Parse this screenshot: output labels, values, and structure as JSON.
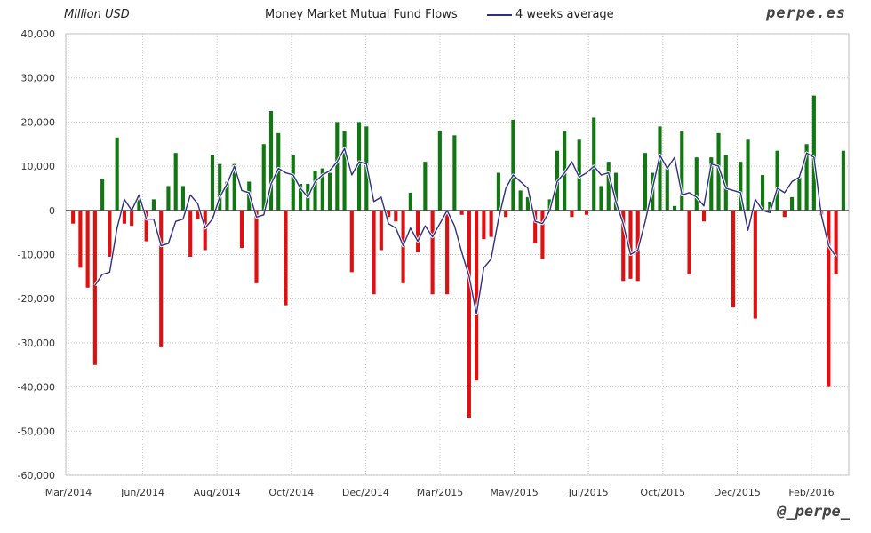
{
  "header": {
    "unit_label": "Million USD",
    "title": "Money Market Mutual Fund Flows",
    "legend_line_label": "4 weeks average",
    "brand": "perpe.es",
    "handle": "@_perpe_"
  },
  "chart_data": {
    "type": "bar",
    "title": "Money Market Mutual Fund Flows",
    "ylabel": "Million USD",
    "xlabel": "",
    "ylim": [
      -60000,
      40000
    ],
    "yticks": [
      "40,000",
      "30,000",
      "20,000",
      "10,000",
      "0",
      "-10,000",
      "-20,000",
      "-30,000",
      "-40,000",
      "-50,000",
      "-60,000"
    ],
    "xtick_labels": [
      "Mar/2014",
      "Jun/2014",
      "Aug/2014",
      "Oct/2014",
      "Dec/2014",
      "Mar/2015",
      "May/2015",
      "Jul/2015",
      "Oct/2015",
      "Dec/2015",
      "Feb/2016"
    ],
    "grid": true,
    "colors": {
      "positive": "#117711",
      "negative": "#dd1111",
      "line": "#2e2e85"
    },
    "series": [
      {
        "name": "",
        "type": "bar",
        "values": [
          -3000,
          -13000,
          -17500,
          -35000,
          7000,
          -10500,
          16500,
          -3000,
          -3500,
          3500,
          -7000,
          2500,
          -31000,
          5500,
          13000,
          5500,
          -10500,
          -2000,
          -9000,
          12500,
          10500,
          6500,
          10500,
          -8500,
          6500,
          -16500,
          15000,
          22500,
          17500,
          -21500,
          12500,
          6000,
          6000,
          9000,
          9500,
          8500,
          20000,
          18000,
          -14000,
          20000,
          19000,
          -19000,
          -9000,
          -1500,
          -2500,
          -16500,
          4000,
          -9500,
          11000,
          -19000,
          18000,
          -19000,
          17000,
          -1000,
          -47000,
          -38500,
          -6500,
          -6000,
          8500,
          -1500,
          20500,
          4500,
          3000,
          -7500,
          -11000,
          2500,
          13500,
          18000,
          -1500,
          16000,
          -1000,
          21000,
          5500,
          11000,
          8500,
          -16000,
          -15500,
          -16000,
          13000,
          8500,
          19000,
          9500,
          1000,
          18000,
          -14500,
          12000,
          -2500,
          12000,
          17500,
          12500,
          -22000,
          11000,
          16000,
          -24500,
          8000,
          2000,
          13500,
          -1500,
          3000,
          7500,
          15000,
          26000,
          -1000,
          -40000,
          -14500,
          13500
        ]
      },
      {
        "name": "4 weeks average",
        "type": "line",
        "values": [
          null,
          null,
          null,
          -17000,
          -14500,
          -14000,
          -4000,
          2500,
          0,
          3500,
          -2000,
          -2000,
          -8000,
          -7500,
          -2500,
          -2000,
          3500,
          1500,
          -4000,
          -2000,
          3000,
          6000,
          10000,
          4500,
          4000,
          -1500,
          -1000,
          6000,
          9500,
          8500,
          8000,
          5000,
          3000,
          6500,
          8000,
          9000,
          11000,
          14000,
          8000,
          11000,
          10500,
          2000,
          3000,
          -3000,
          -4000,
          -8000,
          -4000,
          -7000,
          -3500,
          -6000,
          -3000,
          0,
          -3500,
          -9500,
          -15000,
          -23500,
          -13000,
          -11000,
          -2000,
          5000,
          8000,
          6500,
          5000,
          -2500,
          -3000,
          0,
          6500,
          8500,
          11000,
          7500,
          8500,
          10000,
          8000,
          8500,
          2000,
          -3000,
          -10000,
          -9000,
          -2500,
          5000,
          12500,
          9500,
          12000,
          3500,
          4000,
          3000,
          1000,
          10500,
          10000,
          5000,
          4500,
          4000,
          -4500,
          2500,
          0,
          -500,
          5000,
          4000,
          6500,
          7500,
          13000,
          12000,
          -1000,
          -8000,
          -10500
        ]
      }
    ]
  }
}
